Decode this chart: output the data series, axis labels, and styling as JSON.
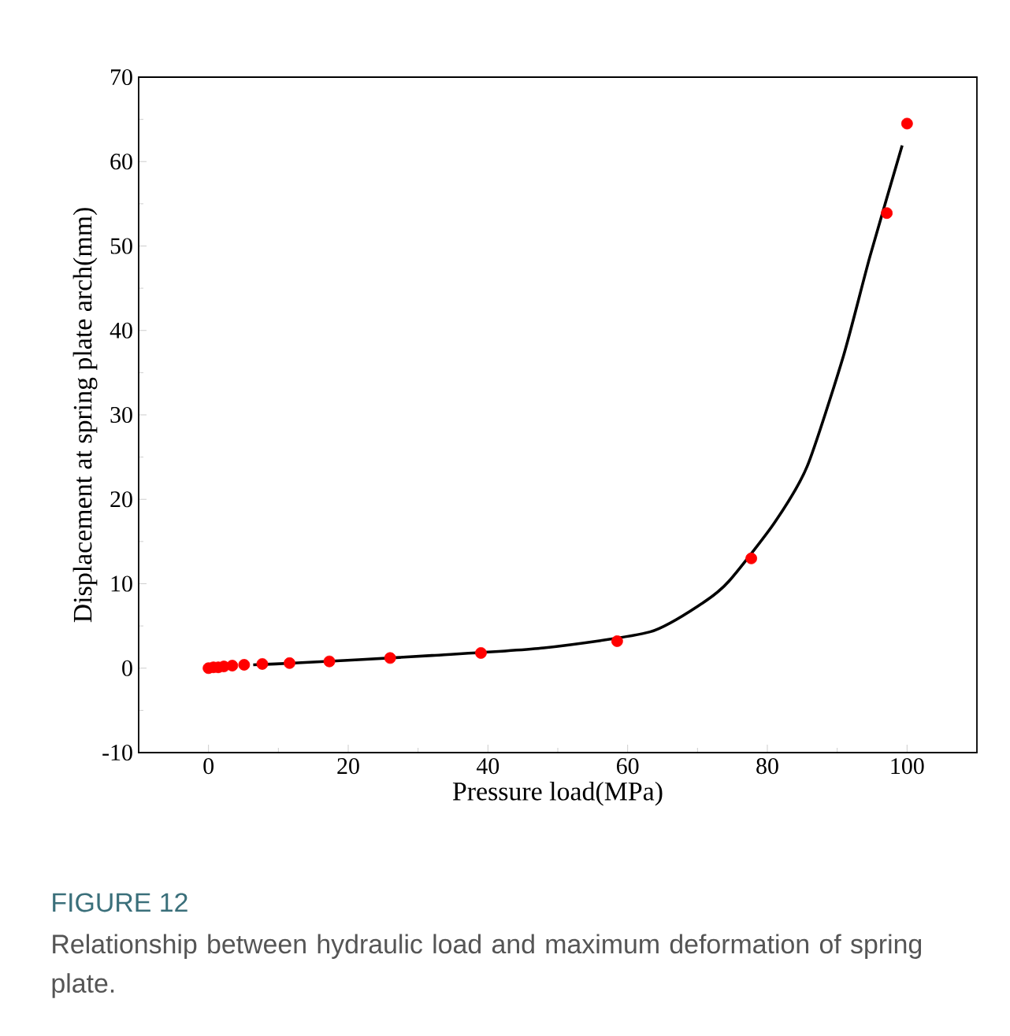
{
  "chart_data": {
    "type": "scatter",
    "xlabel": "Pressure load(MPa)",
    "ylabel": "Displacement at spring plate arch(mm)",
    "xlim": [
      -10,
      110
    ],
    "ylim": [
      -10,
      70
    ],
    "xticks": [
      0,
      20,
      40,
      60,
      80,
      100
    ],
    "yticks": [
      -10,
      0,
      10,
      20,
      30,
      40,
      50,
      60,
      70
    ],
    "series": [
      {
        "type": "line",
        "marker": "none",
        "color": "#000000",
        "x": [
          6.4,
          9.6,
          14.4,
          21.5,
          32,
          48,
          63.2,
          70.7,
          74.5,
          81,
          85.7,
          90.9,
          94.7,
          99.3
        ],
        "values": [
          0.4,
          0.5,
          0.7,
          1.0,
          1.5,
          2.4,
          4.3,
          7.7,
          10.3,
          17.2,
          23.9,
          37.0,
          48.8,
          61.9
        ]
      },
      {
        "marker": "circle",
        "color": "#ff0000",
        "x": [
          0,
          0.7,
          1.4,
          2.2,
          3.4,
          5.1,
          7.7,
          11.6,
          17.3,
          26,
          39,
          58.5,
          77.7,
          97.1,
          100
        ],
        "values": [
          0,
          0.1,
          0.1,
          0.2,
          0.3,
          0.4,
          0.5,
          0.6,
          0.8,
          1.2,
          1.8,
          3.2,
          13.0,
          53.9,
          64.5
        ]
      }
    ],
    "annotations": [
      "FIGURE 12",
      "Relationship between hydraulic load and maximum deformation of spring plate."
    ]
  }
}
